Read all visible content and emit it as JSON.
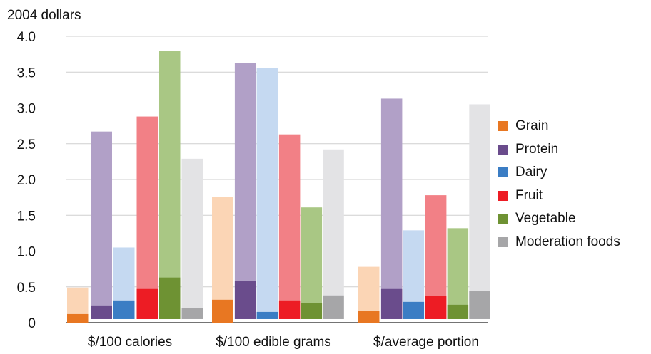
{
  "chart_data": {
    "type": "bar",
    "title": "",
    "ylabel": "2004 dollars",
    "xlabel": "",
    "ylim": [
      0,
      4.0
    ],
    "yticks": [
      "0",
      "0.5",
      "1.0",
      "1.5",
      "2.0",
      "2.5",
      "3.0",
      "3.5",
      "4.0"
    ],
    "grid": true,
    "legend_position": "right",
    "categories": [
      "$/100 calories",
      "$/100 edible grams",
      "$/average portion"
    ],
    "series": [
      {
        "name": "Grain",
        "color": "#E87722",
        "light_color": "#FBD5B5",
        "low": [
          0.12,
          0.32,
          0.16
        ],
        "high": [
          0.49,
          1.76,
          0.78
        ]
      },
      {
        "name": "Protein",
        "color": "#6A4C8C",
        "light_color": "#B1A0C7",
        "low": [
          0.24,
          0.58,
          0.47
        ],
        "high": [
          2.67,
          3.63,
          3.13
        ]
      },
      {
        "name": "Dairy",
        "color": "#3B7DC4",
        "light_color": "#C5D9F1",
        "low": [
          0.31,
          0.15,
          0.29
        ],
        "high": [
          1.05,
          3.56,
          1.29
        ]
      },
      {
        "name": "Fruit",
        "color": "#ED1C24",
        "light_color": "#F28086",
        "low": [
          0.47,
          0.31,
          0.37
        ],
        "high": [
          2.88,
          2.63,
          1.78
        ]
      },
      {
        "name": "Vegetable",
        "color": "#6E9233",
        "light_color": "#A9C784",
        "low": [
          0.63,
          0.27,
          0.25
        ],
        "high": [
          3.8,
          1.61,
          1.32
        ]
      },
      {
        "name": "Moderation foods",
        "color": "#A6A6A8",
        "light_color": "#E3E3E5",
        "low": [
          0.2,
          0.38,
          0.44
        ],
        "high": [
          2.29,
          2.42,
          3.05
        ]
      }
    ]
  }
}
